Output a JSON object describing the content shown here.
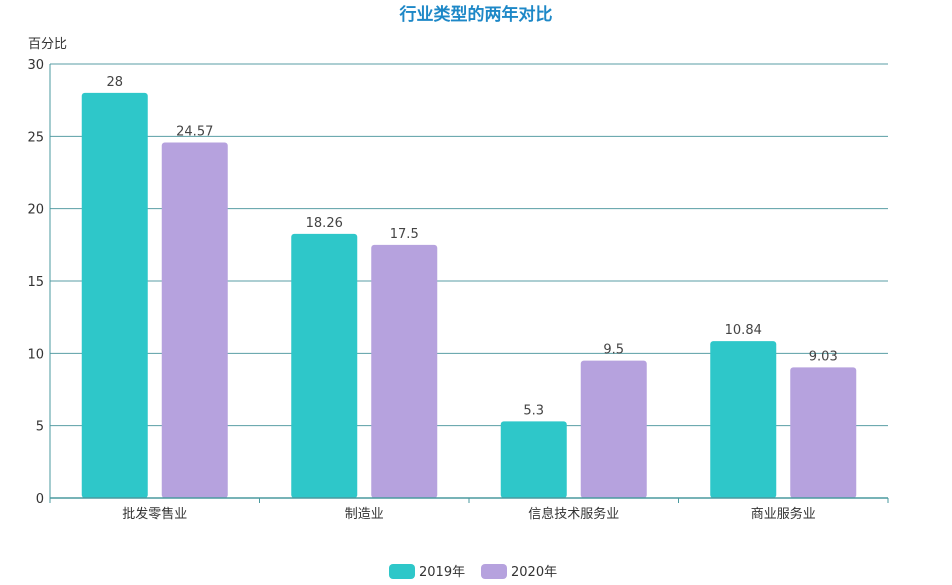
{
  "chart_data": {
    "type": "bar",
    "title": "行业类型的两年对比",
    "ylabel": "百分比",
    "xlabel": "",
    "categories": [
      "批发零售业",
      "制造业",
      "信息技术服务业",
      "商业服务业"
    ],
    "series": [
      {
        "name": "2019年",
        "values": [
          28,
          18.26,
          5.3,
          10.84
        ],
        "color": "#2ec7c9"
      },
      {
        "name": "2020年",
        "values": [
          24.57,
          17.5,
          9.5,
          9.03
        ],
        "color": "#b6a2de"
      }
    ],
    "ylim": [
      0,
      30
    ],
    "yticks": [
      0,
      5,
      10,
      15,
      20,
      25,
      30
    ],
    "grid": true,
    "legend_position": "bottom-center",
    "colors": {
      "title": "#1e88c7",
      "axis": "#4a9a9f",
      "grid": "#5a9ea4"
    }
  }
}
